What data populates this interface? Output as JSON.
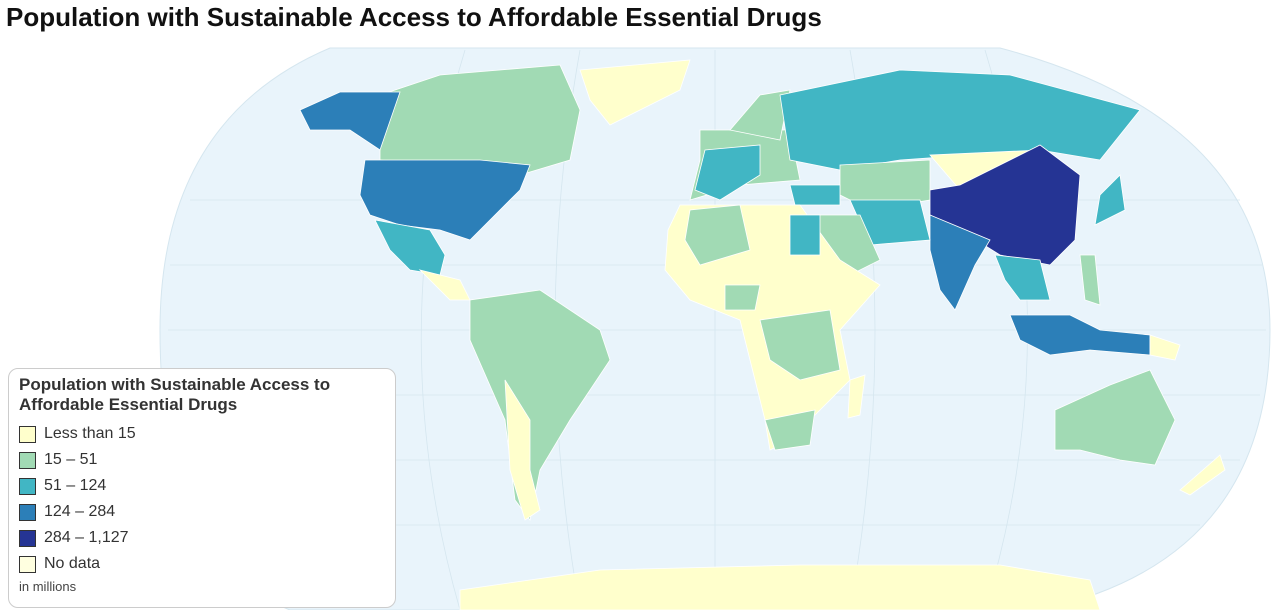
{
  "header": {
    "title": "Population with Sustainable Access to Affordable Essential Drugs"
  },
  "legend": {
    "title": "Population with Sustainable Access to Affordable Essential Drugs",
    "items": [
      {
        "label": "Less than 15",
        "color": "#ffffcc"
      },
      {
        "label": "15 – 51",
        "color": "#a1dab4"
      },
      {
        "label": "51 – 124",
        "color": "#41b6c4"
      },
      {
        "label": "124 – 284",
        "color": "#2c7fb8"
      },
      {
        "label": "284 – 1,127",
        "color": "#253494"
      },
      {
        "label": "No data",
        "color": "#ffffe0"
      }
    ],
    "note": "in millions"
  }
}
